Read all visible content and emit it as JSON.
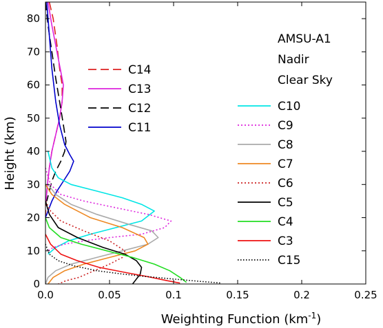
{
  "chart_data": {
    "type": "line",
    "xlabel": "Weighting Function (km",
    "xlabel_sup": "-1",
    "xlabel_close": ")",
    "ylabel": "Height (km)",
    "xlim": [
      0,
      0.25
    ],
    "ylim": [
      0,
      85
    ],
    "xticks": [
      0,
      0.05,
      0.1,
      0.15,
      0.2,
      0.25
    ],
    "xtick_labels": [
      "0.0",
      "0.05",
      "0.1",
      "0.15",
      "0.2",
      "0.25"
    ],
    "yticks": [
      0,
      10,
      20,
      30,
      40,
      50,
      60,
      70,
      80
    ],
    "ytick_labels": [
      "0",
      "10",
      "20",
      "30",
      "40",
      "50",
      "60",
      "70",
      "80"
    ],
    "grid": false,
    "annotation": [
      "AMSU-A1",
      "Nadir",
      "Clear Sky"
    ],
    "series": [
      {
        "name": "C14",
        "color": "#dd2222",
        "dash": "12,6",
        "x": [
          0.003,
          0.006,
          0.009,
          0.011,
          0.013,
          0.013,
          0.011,
          0.008,
          0.005,
          0.003,
          0.0015,
          0.0005,
          0.0
        ],
        "y": [
          85,
          80,
          72,
          65,
          60,
          55,
          50,
          45,
          40,
          35,
          30,
          25,
          20
        ]
      },
      {
        "name": "C13",
        "color": "#dd22dd",
        "dash": "",
        "x": [
          0.002,
          0.005,
          0.009,
          0.012,
          0.014,
          0.013,
          0.011,
          0.008,
          0.005,
          0.003,
          0.0015,
          0.0005
        ],
        "y": [
          85,
          78,
          70,
          64,
          60,
          55,
          50,
          45,
          40,
          35,
          30,
          25
        ]
      },
      {
        "name": "C12",
        "color": "#000000",
        "dash": "12,6",
        "x": [
          0.0,
          0.002,
          0.005,
          0.008,
          0.011,
          0.014,
          0.016,
          0.015,
          0.012,
          0.008,
          0.005,
          0.003,
          0.001
        ],
        "y": [
          85,
          78,
          70,
          62,
          55,
          48,
          43,
          40,
          37,
          34,
          31,
          28,
          25
        ]
      },
      {
        "name": "C11",
        "color": "#0000cc",
        "dash": "",
        "x": [
          0.001,
          0.003,
          0.005,
          0.008,
          0.011,
          0.015,
          0.019,
          0.022,
          0.019,
          0.014,
          0.009,
          0.005,
          0.002,
          0.0
        ],
        "y": [
          85,
          75,
          65,
          55,
          48,
          42,
          39,
          37,
          34,
          31,
          28,
          25,
          22,
          20
        ]
      },
      {
        "name": "C10",
        "color": "#00e5e5",
        "dash": "",
        "x": [
          0.002,
          0.005,
          0.01,
          0.02,
          0.04,
          0.06,
          0.075,
          0.085,
          0.075,
          0.055,
          0.035,
          0.018,
          0.008,
          0.002
        ],
        "y": [
          40,
          35,
          32,
          30,
          28,
          26,
          24,
          22,
          19,
          17,
          15,
          13,
          11,
          9
        ]
      },
      {
        "name": "C9",
        "color": "#dd22dd",
        "dash": "2,3",
        "x": [
          0.0,
          0.004,
          0.012,
          0.03,
          0.055,
          0.08,
          0.098,
          0.093,
          0.075,
          0.05,
          0.03,
          0.015,
          0.006,
          0.002
        ],
        "y": [
          35,
          30,
          27,
          25,
          23,
          21,
          19,
          17,
          15,
          14,
          13,
          12,
          11,
          10
        ]
      },
      {
        "name": "C8",
        "color": "#aaaaaa",
        "dash": "",
        "x": [
          0.002,
          0.008,
          0.02,
          0.04,
          0.065,
          0.083,
          0.088,
          0.08,
          0.06,
          0.04,
          0.02,
          0.008,
          0.002,
          0.0
        ],
        "y": [
          30,
          27,
          24,
          21,
          18,
          16,
          14,
          12,
          10,
          8,
          6,
          4,
          2,
          0
        ]
      },
      {
        "name": "C7",
        "color": "#ee8822",
        "dash": "",
        "x": [
          0.0,
          0.005,
          0.015,
          0.035,
          0.06,
          0.077,
          0.08,
          0.07,
          0.05,
          0.03,
          0.015,
          0.006,
          0.002
        ],
        "y": [
          30,
          27,
          24,
          20,
          17,
          14,
          12,
          10,
          8,
          6,
          4,
          2,
          0
        ]
      },
      {
        "name": "C6",
        "color": "#cc2222",
        "dash": "2,3",
        "x": [
          0.0,
          0.004,
          0.012,
          0.03,
          0.05,
          0.062,
          0.06,
          0.05,
          0.038,
          0.026,
          0.016,
          0.01
        ],
        "y": [
          25,
          22,
          19,
          16,
          13,
          10,
          8,
          6,
          4,
          2,
          1,
          0
        ]
      },
      {
        "name": "C5",
        "color": "#000000",
        "dash": "",
        "x": [
          0.0,
          0.003,
          0.01,
          0.025,
          0.045,
          0.062,
          0.071,
          0.075,
          0.074,
          0.07,
          0.068
        ],
        "y": [
          25,
          21,
          17,
          14,
          11,
          9,
          7,
          5,
          3,
          1,
          0
        ]
      },
      {
        "name": "C4",
        "color": "#22dd22",
        "dash": "",
        "x": [
          0.0,
          0.003,
          0.012,
          0.028,
          0.048,
          0.068,
          0.085,
          0.097,
          0.105,
          0.11
        ],
        "y": [
          20,
          17,
          14,
          12,
          10,
          8,
          6,
          4,
          2,
          0.5
        ]
      },
      {
        "name": "C3",
        "color": "#ee1111",
        "dash": "",
        "x": [
          0.0,
          0.004,
          0.012,
          0.025,
          0.042,
          0.062,
          0.08,
          0.095,
          0.105
        ],
        "y": [
          15,
          12,
          9,
          7,
          5,
          3.5,
          2.2,
          1,
          0.3
        ]
      },
      {
        "name": "C15",
        "color": "#000000",
        "dash": "1.5,2.5",
        "x": [
          0.0,
          0.003,
          0.01,
          0.022,
          0.04,
          0.06,
          0.08,
          0.1,
          0.12,
          0.137
        ],
        "y": [
          12,
          9,
          7,
          5.5,
          4,
          3,
          2.2,
          1.5,
          0.8,
          0.3
        ]
      }
    ]
  }
}
